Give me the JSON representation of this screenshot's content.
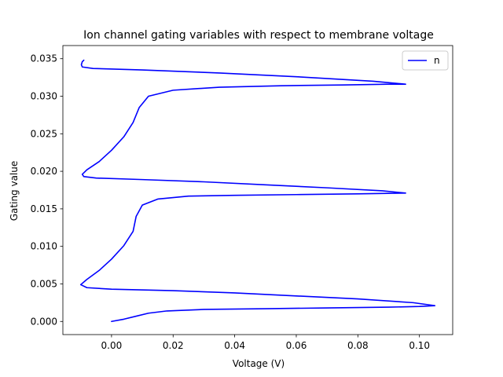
{
  "chart_data": {
    "type": "line",
    "title": "Ion channel gating variables with respect to membrane voltage",
    "xlabel": "Voltage (V)",
    "ylabel": "Gating value",
    "xlim": [
      -0.0158,
      0.1108
    ],
    "ylim": [
      -0.00175,
      0.03675
    ],
    "xticks": [
      0.0,
      0.02,
      0.04,
      0.06,
      0.08,
      0.1
    ],
    "xtick_labels": [
      "0.00",
      "0.02",
      "0.04",
      "0.06",
      "0.08",
      "0.10"
    ],
    "yticks": [
      0.0,
      0.005,
      0.01,
      0.015,
      0.02,
      0.025,
      0.03,
      0.035
    ],
    "ytick_labels": [
      "0.000",
      "0.005",
      "0.010",
      "0.015",
      "0.020",
      "0.025",
      "0.030",
      "0.035"
    ],
    "grid": false,
    "legend_position": "top-right",
    "series": [
      {
        "name": "n",
        "color": "#0000ff",
        "points": [
          [
            0.0,
            0.0
          ],
          [
            0.004,
            0.0003
          ],
          [
            0.008,
            0.0007
          ],
          [
            0.012,
            0.0011
          ],
          [
            0.018,
            0.0014
          ],
          [
            0.03,
            0.0016
          ],
          [
            0.05,
            0.0017
          ],
          [
            0.07,
            0.0018
          ],
          [
            0.09,
            0.0019
          ],
          [
            0.1,
            0.002
          ],
          [
            0.105,
            0.0021
          ],
          [
            0.098,
            0.0025
          ],
          [
            0.08,
            0.003
          ],
          [
            0.06,
            0.0034
          ],
          [
            0.04,
            0.0038
          ],
          [
            0.02,
            0.0041
          ],
          [
            0.0,
            0.0043
          ],
          [
            -0.008,
            0.0045
          ],
          [
            -0.01,
            0.0049
          ],
          [
            -0.008,
            0.0056
          ],
          [
            -0.004,
            0.0068
          ],
          [
            0.0,
            0.0083
          ],
          [
            0.004,
            0.0101
          ],
          [
            0.007,
            0.012
          ],
          [
            0.008,
            0.014
          ],
          [
            0.01,
            0.0155
          ],
          [
            0.015,
            0.0163
          ],
          [
            0.025,
            0.0167
          ],
          [
            0.04,
            0.0168
          ],
          [
            0.06,
            0.0169
          ],
          [
            0.08,
            0.017
          ],
          [
            0.0955,
            0.0171
          ],
          [
            0.088,
            0.0174
          ],
          [
            0.07,
            0.0178
          ],
          [
            0.05,
            0.0182
          ],
          [
            0.03,
            0.0186
          ],
          [
            0.01,
            0.0189
          ],
          [
            -0.005,
            0.0191
          ],
          [
            -0.009,
            0.0193
          ],
          [
            -0.0095,
            0.0196
          ],
          [
            -0.008,
            0.0202
          ],
          [
            -0.004,
            0.0213
          ],
          [
            0.0,
            0.0228
          ],
          [
            0.004,
            0.0246
          ],
          [
            0.007,
            0.0265
          ],
          [
            0.009,
            0.0285
          ],
          [
            0.012,
            0.03
          ],
          [
            0.02,
            0.0308
          ],
          [
            0.035,
            0.0312
          ],
          [
            0.055,
            0.0314
          ],
          [
            0.075,
            0.0315
          ],
          [
            0.09,
            0.0316
          ],
          [
            0.0955,
            0.0316
          ],
          [
            0.085,
            0.032
          ],
          [
            0.06,
            0.0326
          ],
          [
            0.035,
            0.0331
          ],
          [
            0.01,
            0.0335
          ],
          [
            -0.006,
            0.0337
          ],
          [
            -0.0095,
            0.0339
          ],
          [
            -0.0098,
            0.0342
          ],
          [
            -0.0095,
            0.0346
          ],
          [
            -0.009,
            0.0348
          ]
        ]
      }
    ]
  }
}
